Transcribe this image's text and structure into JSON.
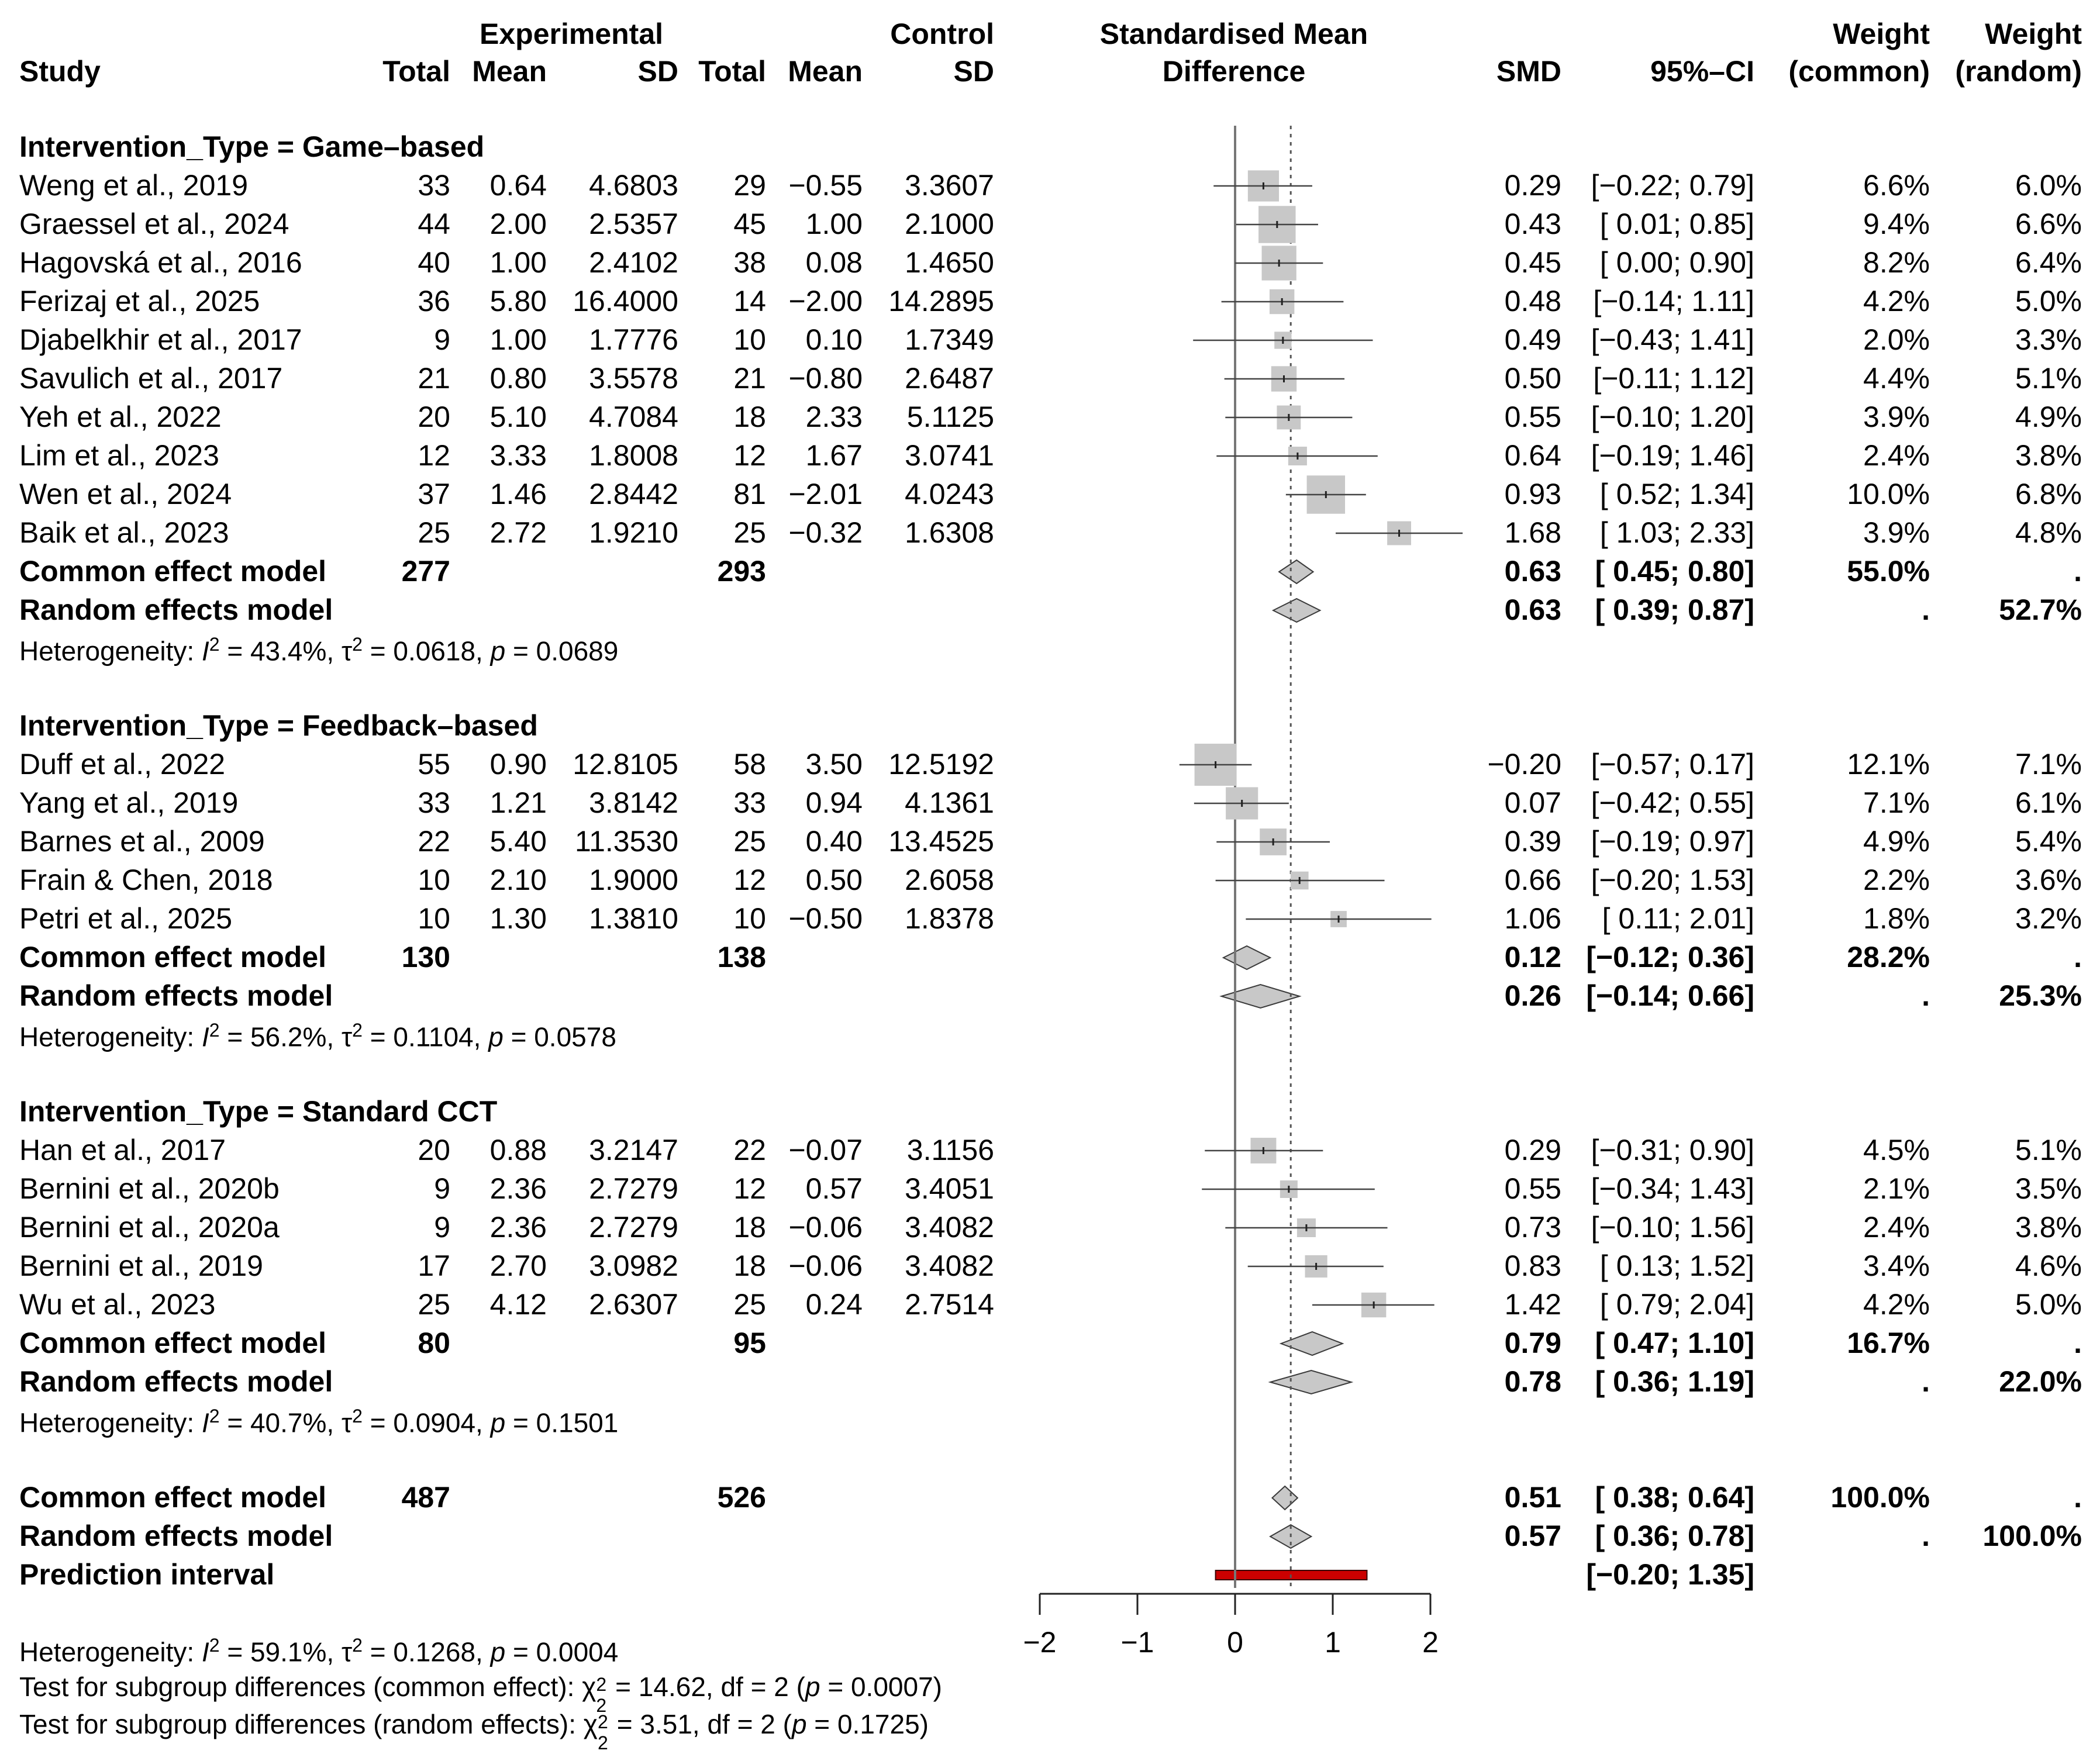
{
  "header": {
    "study": "Study",
    "experimental": "Experimental",
    "control": "Control",
    "total": "Total",
    "mean": "Mean",
    "sd": "SD",
    "smd_line1": "Standardised Mean",
    "smd_line2": "Difference",
    "smd": "SMD",
    "ci": "95%–CI",
    "weight": "Weight",
    "common": "(common)",
    "random": "(random)"
  },
  "chart_data": {
    "type": "forest",
    "xlabel": "Standardised Mean Difference",
    "xlim": [
      -2,
      2
    ],
    "ticks": [
      "−2",
      "−1",
      "0",
      "1",
      "2"
    ],
    "tick_values": [
      -2,
      -1,
      0,
      1,
      2
    ],
    "reference_line": 0,
    "overall_random_line": 0.57,
    "subgroups": [
      {
        "label": "Intervention_Type = Game–based",
        "studies": [
          {
            "study": "Weng et al., 2019",
            "e_total": "33",
            "e_mean": "0.64",
            "e_sd": "4.6803",
            "c_total": "29",
            "c_mean": "−0.55",
            "c_sd": "3.3607",
            "smd_text": "0.29",
            "ci_text": "[−0.22; 0.79]",
            "w_common": "6.6%",
            "w_random": "6.0%",
            "smd": 0.29,
            "lo": -0.22,
            "hi": 0.79,
            "weight": 6.6
          },
          {
            "study": "Graessel et al., 2024",
            "e_total": "44",
            "e_mean": "2.00",
            "e_sd": "2.5357",
            "c_total": "45",
            "c_mean": "1.00",
            "c_sd": "2.1000",
            "smd_text": "0.43",
            "ci_text": "[ 0.01; 0.85]",
            "w_common": "9.4%",
            "w_random": "6.6%",
            "smd": 0.43,
            "lo": 0.01,
            "hi": 0.85,
            "weight": 9.4
          },
          {
            "study": "Hagovská et al., 2016",
            "e_total": "40",
            "e_mean": "1.00",
            "e_sd": "2.4102",
            "c_total": "38",
            "c_mean": "0.08",
            "c_sd": "1.4650",
            "smd_text": "0.45",
            "ci_text": "[ 0.00; 0.90]",
            "w_common": "8.2%",
            "w_random": "6.4%",
            "smd": 0.45,
            "lo": 0.0,
            "hi": 0.9,
            "weight": 8.2
          },
          {
            "study": "Ferizaj et al., 2025",
            "e_total": "36",
            "e_mean": "5.80",
            "e_sd": "16.4000",
            "c_total": "14",
            "c_mean": "−2.00",
            "c_sd": "14.2895",
            "smd_text": "0.48",
            "ci_text": "[−0.14; 1.11]",
            "w_common": "4.2%",
            "w_random": "5.0%",
            "smd": 0.48,
            "lo": -0.14,
            "hi": 1.11,
            "weight": 4.2
          },
          {
            "study": "Djabelkhir et al., 2017",
            "e_total": "9",
            "e_mean": "1.00",
            "e_sd": "1.7776",
            "c_total": "10",
            "c_mean": "0.10",
            "c_sd": "1.7349",
            "smd_text": "0.49",
            "ci_text": "[−0.43; 1.41]",
            "w_common": "2.0%",
            "w_random": "3.3%",
            "smd": 0.49,
            "lo": -0.43,
            "hi": 1.41,
            "weight": 2.0
          },
          {
            "study": "Savulich et al., 2017",
            "e_total": "21",
            "e_mean": "0.80",
            "e_sd": "3.5578",
            "c_total": "21",
            "c_mean": "−0.80",
            "c_sd": "2.6487",
            "smd_text": "0.50",
            "ci_text": "[−0.11; 1.12]",
            "w_common": "4.4%",
            "w_random": "5.1%",
            "smd": 0.5,
            "lo": -0.11,
            "hi": 1.12,
            "weight": 4.4
          },
          {
            "study": "Yeh et al., 2022",
            "e_total": "20",
            "e_mean": "5.10",
            "e_sd": "4.7084",
            "c_total": "18",
            "c_mean": "2.33",
            "c_sd": "5.1125",
            "smd_text": "0.55",
            "ci_text": "[−0.10; 1.20]",
            "w_common": "3.9%",
            "w_random": "4.9%",
            "smd": 0.55,
            "lo": -0.1,
            "hi": 1.2,
            "weight": 3.9
          },
          {
            "study": "Lim et al., 2023",
            "e_total": "12",
            "e_mean": "3.33",
            "e_sd": "1.8008",
            "c_total": "12",
            "c_mean": "1.67",
            "c_sd": "3.0741",
            "smd_text": "0.64",
            "ci_text": "[−0.19; 1.46]",
            "w_common": "2.4%",
            "w_random": "3.8%",
            "smd": 0.64,
            "lo": -0.19,
            "hi": 1.46,
            "weight": 2.4
          },
          {
            "study": "Wen et al., 2024",
            "e_total": "37",
            "e_mean": "1.46",
            "e_sd": "2.8442",
            "c_total": "81",
            "c_mean": "−2.01",
            "c_sd": "4.0243",
            "smd_text": "0.93",
            "ci_text": "[ 0.52; 1.34]",
            "w_common": "10.0%",
            "w_random": "6.8%",
            "smd": 0.93,
            "lo": 0.52,
            "hi": 1.34,
            "weight": 10.0
          },
          {
            "study": "Baik et al., 2023",
            "e_total": "25",
            "e_mean": "2.72",
            "e_sd": "1.9210",
            "c_total": "25",
            "c_mean": "−0.32",
            "c_sd": "1.6308",
            "smd_text": "1.68",
            "ci_text": "[ 1.03; 2.33]",
            "w_common": "3.9%",
            "w_random": "4.8%",
            "smd": 1.68,
            "lo": 1.03,
            "hi": 2.33,
            "weight": 3.9
          }
        ],
        "common": {
          "label": "Common effect model",
          "e_total": "277",
          "c_total": "293",
          "smd_text": "0.63",
          "ci_text": "[ 0.45; 0.80]",
          "w_common": "55.0%",
          "w_random": ".",
          "smd": 0.63,
          "lo": 0.45,
          "hi": 0.8
        },
        "random": {
          "label": "Random effects model",
          "smd_text": "0.63",
          "ci_text": "[ 0.39; 0.87]",
          "w_common": ".",
          "w_random": "52.7%",
          "smd": 0.63,
          "lo": 0.39,
          "hi": 0.87
        },
        "het": {
          "prefix": "Heterogeneity: ",
          "I": "I",
          "sup": "2",
          "a": " = 43.4%, τ",
          "b": " = 0.0618, ",
          "p": "p",
          "c": " = 0.0689"
        }
      },
      {
        "label": "Intervention_Type = Feedback–based",
        "studies": [
          {
            "study": "Duff et al., 2022",
            "e_total": "55",
            "e_mean": "0.90",
            "e_sd": "12.8105",
            "c_total": "58",
            "c_mean": "3.50",
            "c_sd": "12.5192",
            "smd_text": "−0.20",
            "ci_text": "[−0.57; 0.17]",
            "w_common": "12.1%",
            "w_random": "7.1%",
            "smd": -0.2,
            "lo": -0.57,
            "hi": 0.17,
            "weight": 12.1
          },
          {
            "study": "Yang et al., 2019",
            "e_total": "33",
            "e_mean": "1.21",
            "e_sd": "3.8142",
            "c_total": "33",
            "c_mean": "0.94",
            "c_sd": "4.1361",
            "smd_text": "0.07",
            "ci_text": "[−0.42; 0.55]",
            "w_common": "7.1%",
            "w_random": "6.1%",
            "smd": 0.07,
            "lo": -0.42,
            "hi": 0.55,
            "weight": 7.1
          },
          {
            "study": "Barnes et al., 2009",
            "e_total": "22",
            "e_mean": "5.40",
            "e_sd": "11.3530",
            "c_total": "25",
            "c_mean": "0.40",
            "c_sd": "13.4525",
            "smd_text": "0.39",
            "ci_text": "[−0.19; 0.97]",
            "w_common": "4.9%",
            "w_random": "5.4%",
            "smd": 0.39,
            "lo": -0.19,
            "hi": 0.97,
            "weight": 4.9
          },
          {
            "study": "Frain & Chen, 2018",
            "e_total": "10",
            "e_mean": "2.10",
            "e_sd": "1.9000",
            "c_total": "12",
            "c_mean": "0.50",
            "c_sd": "2.6058",
            "smd_text": "0.66",
            "ci_text": "[−0.20; 1.53]",
            "w_common": "2.2%",
            "w_random": "3.6%",
            "smd": 0.66,
            "lo": -0.2,
            "hi": 1.53,
            "weight": 2.2
          },
          {
            "study": "Petri et al., 2025",
            "e_total": "10",
            "e_mean": "1.30",
            "e_sd": "1.3810",
            "c_total": "10",
            "c_mean": "−0.50",
            "c_sd": "1.8378",
            "smd_text": "1.06",
            "ci_text": "[ 0.11; 2.01]",
            "w_common": "1.8%",
            "w_random": "3.2%",
            "smd": 1.06,
            "lo": 0.11,
            "hi": 2.01,
            "weight": 1.8
          }
        ],
        "common": {
          "label": "Common effect model",
          "e_total": "130",
          "c_total": "138",
          "smd_text": "0.12",
          "ci_text": "[−0.12; 0.36]",
          "w_common": "28.2%",
          "w_random": ".",
          "smd": 0.12,
          "lo": -0.12,
          "hi": 0.36
        },
        "random": {
          "label": "Random effects model",
          "smd_text": "0.26",
          "ci_text": "[−0.14; 0.66]",
          "w_common": ".",
          "w_random": "25.3%",
          "smd": 0.26,
          "lo": -0.14,
          "hi": 0.66
        },
        "het": {
          "prefix": "Heterogeneity: ",
          "I": "I",
          "sup": "2",
          "a": " = 56.2%, τ",
          "b": " = 0.1104, ",
          "p": "p",
          "c": " = 0.0578"
        }
      },
      {
        "label": "Intervention_Type = Standard CCT",
        "studies": [
          {
            "study": "Han et al., 2017",
            "e_total": "20",
            "e_mean": "0.88",
            "e_sd": "3.2147",
            "c_total": "22",
            "c_mean": "−0.07",
            "c_sd": "3.1156",
            "smd_text": "0.29",
            "ci_text": "[−0.31; 0.90]",
            "w_common": "4.5%",
            "w_random": "5.1%",
            "smd": 0.29,
            "lo": -0.31,
            "hi": 0.9,
            "weight": 4.5
          },
          {
            "study": "Bernini et al., 2020b",
            "e_total": "9",
            "e_mean": "2.36",
            "e_sd": "2.7279",
            "c_total": "12",
            "c_mean": "0.57",
            "c_sd": "3.4051",
            "smd_text": "0.55",
            "ci_text": "[−0.34; 1.43]",
            "w_common": "2.1%",
            "w_random": "3.5%",
            "smd": 0.55,
            "lo": -0.34,
            "hi": 1.43,
            "weight": 2.1
          },
          {
            "study": "Bernini et al., 2020a",
            "e_total": "9",
            "e_mean": "2.36",
            "e_sd": "2.7279",
            "c_total": "18",
            "c_mean": "−0.06",
            "c_sd": "3.4082",
            "smd_text": "0.73",
            "ci_text": "[−0.10; 1.56]",
            "w_common": "2.4%",
            "w_random": "3.8%",
            "smd": 0.73,
            "lo": -0.1,
            "hi": 1.56,
            "weight": 2.4
          },
          {
            "study": "Bernini et al., 2019",
            "e_total": "17",
            "e_mean": "2.70",
            "e_sd": "3.0982",
            "c_total": "18",
            "c_mean": "−0.06",
            "c_sd": "3.4082",
            "smd_text": "0.83",
            "ci_text": "[ 0.13; 1.52]",
            "w_common": "3.4%",
            "w_random": "4.6%",
            "smd": 0.83,
            "lo": 0.13,
            "hi": 1.52,
            "weight": 3.4
          },
          {
            "study": "Wu et al., 2023",
            "e_total": "25",
            "e_mean": "4.12",
            "e_sd": "2.6307",
            "c_total": "25",
            "c_mean": "0.24",
            "c_sd": "2.7514",
            "smd_text": "1.42",
            "ci_text": "[ 0.79; 2.04]",
            "w_common": "4.2%",
            "w_random": "5.0%",
            "smd": 1.42,
            "lo": 0.79,
            "hi": 2.04,
            "weight": 4.2
          }
        ],
        "common": {
          "label": "Common effect model",
          "e_total": "80",
          "c_total": "95",
          "smd_text": "0.79",
          "ci_text": "[ 0.47; 1.10]",
          "w_common": "16.7%",
          "w_random": ".",
          "smd": 0.79,
          "lo": 0.47,
          "hi": 1.1
        },
        "random": {
          "label": "Random effects model",
          "smd_text": "0.78",
          "ci_text": "[ 0.36; 1.19]",
          "w_common": ".",
          "w_random": "22.0%",
          "smd": 0.78,
          "lo": 0.36,
          "hi": 1.19
        },
        "het": {
          "prefix": "Heterogeneity: ",
          "I": "I",
          "sup": "2",
          "a": " = 40.7%, τ",
          "b": " = 0.0904, ",
          "p": "p",
          "c": " = 0.1501"
        }
      }
    ],
    "overall": {
      "common": {
        "label": "Common effect model",
        "e_total": "487",
        "c_total": "526",
        "smd_text": "0.51",
        "ci_text": "[ 0.38; 0.64]",
        "w_common": "100.0%",
        "w_random": ".",
        "smd": 0.51,
        "lo": 0.38,
        "hi": 0.64
      },
      "random": {
        "label": "Random effects model",
        "smd_text": "0.57",
        "ci_text": "[ 0.36; 0.78]",
        "w_common": ".",
        "w_random": "100.0%",
        "smd": 0.57,
        "lo": 0.36,
        "hi": 0.78
      },
      "prediction": {
        "label": "Prediction interval",
        "ci_text": "[−0.20; 1.35]",
        "lo": -0.2,
        "hi": 1.35,
        "color": "#cc0000"
      },
      "het": {
        "prefix": "Heterogeneity: ",
        "I": "I",
        "sup": "2",
        "a": " = 59.1%, τ",
        "b": " = 0.1268, ",
        "p": "p",
        "c": " = 0.0004"
      },
      "test_common": {
        "prefix": "Test for subgroup differences (common effect): ",
        "chi": "χ",
        "sub": "2",
        "sup": "2",
        "rest": " = 14.62, df = 2 (",
        "p": "p",
        "end": " = 0.0007)"
      },
      "test_random": {
        "prefix": "Test for subgroup differences (random effects): ",
        "chi": "χ",
        "sub": "2",
        "sup": "2",
        "rest": " = 3.51, df = 2 (",
        "p": "p",
        "end": " = 0.1725)"
      }
    }
  }
}
